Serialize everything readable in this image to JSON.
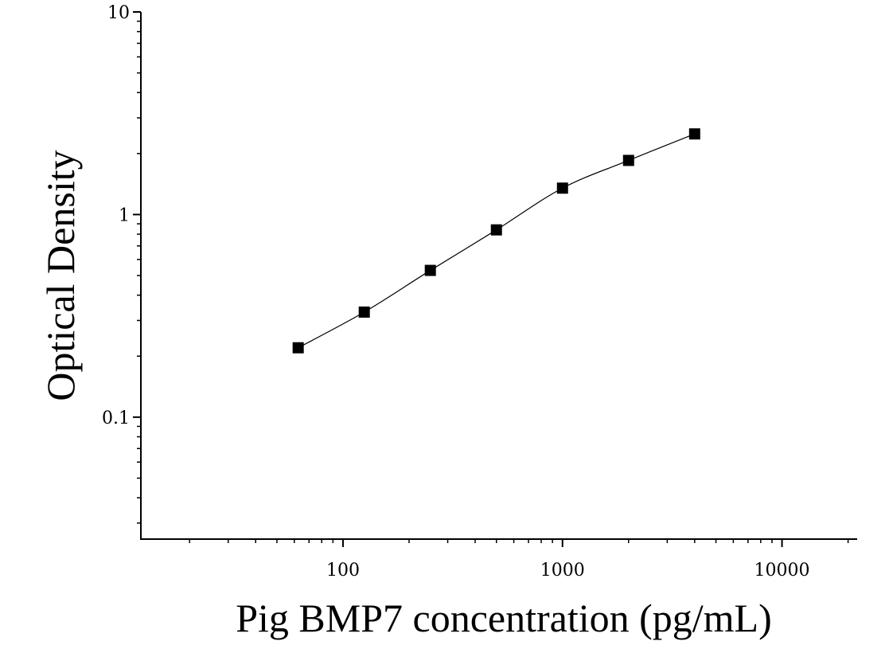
{
  "chart_data": {
    "type": "scatter",
    "title": "",
    "xlabel": "Pig BMP7 concentration (pg/mL)",
    "ylabel": "Optical Density",
    "xscale": "log",
    "yscale": "log",
    "xlim": [
      12,
      22000
    ],
    "ylim": [
      0.025,
      10
    ],
    "grid": false,
    "x_ticks": [
      {
        "value": 100,
        "label": "100"
      },
      {
        "value": 1000,
        "label": "1000"
      },
      {
        "value": 10000,
        "label": "10000"
      }
    ],
    "y_ticks": [
      {
        "value": 0.1,
        "label": "0.1"
      },
      {
        "value": 1,
        "label": "1"
      },
      {
        "value": 10,
        "label": "10"
      }
    ],
    "series": [
      {
        "marker": "square",
        "color": "#000000",
        "fit_line": true,
        "x": [
          62.5,
          125,
          250,
          500,
          1000,
          2000,
          4000
        ],
        "y": [
          0.22,
          0.33,
          0.53,
          0.84,
          1.35,
          1.85,
          2.5
        ]
      }
    ]
  }
}
